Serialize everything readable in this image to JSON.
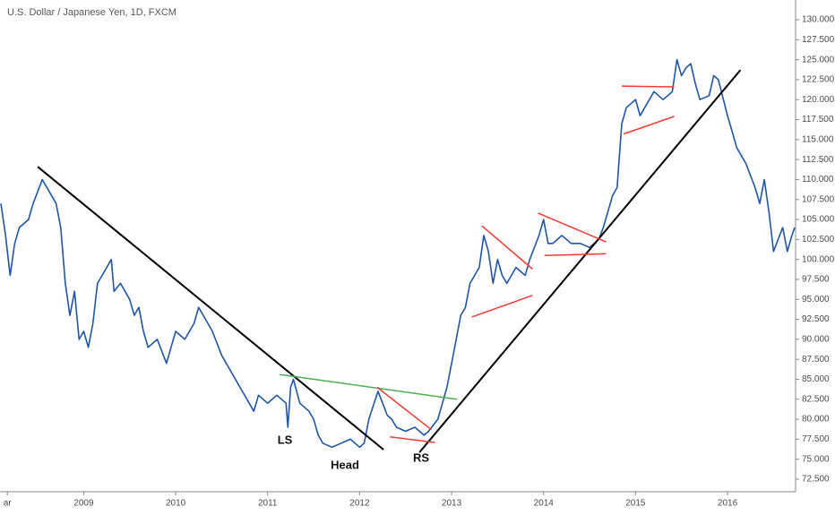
{
  "chart_data": {
    "type": "line",
    "title": "U.S. Dollar / Japanese Yen, 1D, FXCM",
    "x": [
      2008.1,
      2008.15,
      2008.2,
      2008.25,
      2008.3,
      2008.4,
      2008.45,
      2008.55,
      2008.65,
      2008.7,
      2008.75,
      2008.8,
      2008.85,
      2008.9,
      2008.95,
      2009.0,
      2009.05,
      2009.1,
      2009.15,
      2009.2,
      2009.3,
      2009.33,
      2009.4,
      2009.5,
      2009.55,
      2009.6,
      2009.65,
      2009.7,
      2009.8,
      2009.9,
      2009.95,
      2010.0,
      2010.1,
      2010.2,
      2010.25,
      2010.3,
      2010.35,
      2010.4,
      2010.5,
      2010.6,
      2010.7,
      2010.8,
      2010.85,
      2010.9,
      2011.0,
      2011.1,
      2011.2,
      2011.22,
      2011.25,
      2011.28,
      2011.35,
      2011.45,
      2011.5,
      2011.55,
      2011.6,
      2011.7,
      2011.8,
      2011.9,
      2012.0,
      2012.05,
      2012.1,
      2012.2,
      2012.25,
      2012.3,
      2012.35,
      2012.4,
      2012.5,
      2012.6,
      2012.7,
      2012.75,
      2012.85,
      2012.9,
      2012.95,
      2013.0,
      2013.05,
      2013.1,
      2013.15,
      2013.2,
      2013.3,
      2013.35,
      2013.4,
      2013.45,
      2013.5,
      2013.55,
      2013.6,
      2013.7,
      2013.8,
      2013.85,
      2013.95,
      2014.0,
      2014.05,
      2014.1,
      2014.2,
      2014.3,
      2014.4,
      2014.5,
      2014.55,
      2014.6,
      2014.65,
      2014.7,
      2014.75,
      2014.8,
      2014.85,
      2014.9,
      2015.0,
      2015.05,
      2015.1,
      2015.2,
      2015.3,
      2015.4,
      2015.45,
      2015.5,
      2015.55,
      2015.6,
      2015.65,
      2015.7,
      2015.8,
      2015.85,
      2015.9,
      2016.0,
      2016.05,
      2016.1,
      2016.15,
      2016.2,
      2016.3,
      2016.35,
      2016.4,
      2016.45,
      2016.5,
      2016.55,
      2016.6,
      2016.65,
      2016.7,
      2016.73
    ],
    "series": [
      {
        "color": "#1f55a6",
        "values": [
          107,
          103,
          98,
          102,
          104,
          105,
          107,
          110,
          108,
          107,
          104,
          97,
          93,
          96,
          90,
          91,
          89,
          92,
          97,
          98,
          100,
          96,
          97,
          95,
          93,
          94,
          91,
          89,
          90,
          87,
          89,
          91,
          90,
          92,
          94,
          93,
          92,
          91,
          88,
          86,
          84,
          82,
          81,
          83,
          82,
          83,
          82,
          79,
          84,
          85,
          82,
          81,
          80,
          78,
          77,
          76.5,
          77,
          77.5,
          76.5,
          77,
          80,
          83.5,
          82,
          80.5,
          80,
          79,
          78.5,
          79,
          78,
          78.5,
          80,
          82,
          84,
          87,
          90,
          93,
          94,
          97,
          99,
          103,
          101,
          97,
          100,
          98,
          97,
          99,
          98,
          100,
          103,
          105,
          102,
          102,
          103,
          102,
          102,
          101.5,
          102,
          102.5,
          104,
          106,
          108,
          109,
          117,
          119,
          120,
          118,
          119,
          121,
          120,
          121,
          125,
          123,
          124,
          124.5,
          122,
          120,
          120.5,
          123,
          122.5,
          118,
          116,
          114,
          113,
          112,
          109,
          107,
          110,
          106,
          101,
          102.5,
          104,
          101,
          103,
          104
        ]
      }
    ],
    "trendlines": [
      {
        "color": "#000000",
        "x": [
          2008.5,
          2012.26
        ],
        "y": [
          111.6,
          76.2
        ]
      },
      {
        "color": "#000000",
        "x": [
          2012.65,
          2016.14
        ],
        "y": [
          75.85,
          123.7
        ]
      },
      {
        "color": "#4caf50",
        "x": [
          2011.13,
          2013.06
        ],
        "y": [
          85.6,
          82.5
        ]
      },
      {
        "color": "#f03c32",
        "x": [
          2012.19,
          2012.78
        ],
        "y": [
          84.0,
          78.7
        ]
      },
      {
        "color": "#f03c32",
        "x": [
          2012.33,
          2012.82
        ],
        "y": [
          77.8,
          77.1
        ]
      },
      {
        "color": "#f03c32",
        "x": [
          2013.33,
          2013.88
        ],
        "y": [
          104.2,
          98.8
        ]
      },
      {
        "color": "#f03c32",
        "x": [
          2013.22,
          2013.88
        ],
        "y": [
          92.8,
          95.5
        ]
      },
      {
        "color": "#f03c32",
        "x": [
          2013.94,
          2014.68
        ],
        "y": [
          105.8,
          102.2
        ]
      },
      {
        "color": "#f03c32",
        "x": [
          2014.01,
          2014.68
        ],
        "y": [
          100.5,
          100.7
        ]
      },
      {
        "color": "#f03c32",
        "x": [
          2014.85,
          2015.42
        ],
        "y": [
          121.7,
          121.6
        ]
      },
      {
        "color": "#f03c32",
        "x": [
          2014.87,
          2015.42
        ],
        "y": [
          115.7,
          117.9
        ]
      }
    ],
    "annotations": [
      "LS",
      "Head",
      "RS"
    ],
    "xlim": [
      2008.09,
      2016.74
    ],
    "xticks": [
      {
        "value": 2008.17,
        "label": "ar"
      },
      2009,
      2010,
      2011,
      2012,
      2013,
      2014,
      2015,
      2016
    ],
    "ylim": [
      70.93,
      132.47
    ],
    "yticks": [
      {
        "value": 72.5,
        "label": "72.500"
      },
      {
        "value": 75,
        "label": "75.000"
      },
      {
        "value": 77.5,
        "label": "77.500"
      },
      {
        "value": 80,
        "label": "80.000"
      },
      {
        "value": 82.5,
        "label": "82.500"
      },
      {
        "value": 85,
        "label": "85.000"
      },
      {
        "value": 87.5,
        "label": "87.500"
      },
      {
        "value": 90,
        "label": "90.000"
      },
      {
        "value": 92.5,
        "label": "92.500"
      },
      {
        "value": 95,
        "label": "95.000"
      },
      {
        "value": 97.5,
        "label": "97.500"
      },
      {
        "value": 100,
        "label": "100.000"
      },
      {
        "value": 102.5,
        "label": "102.500"
      },
      {
        "value": 105,
        "label": "105.000"
      },
      {
        "value": 107.5,
        "label": "107.500"
      },
      {
        "value": 110,
        "label": "110.000"
      },
      {
        "value": 112.5,
        "label": "112.500"
      },
      {
        "value": 115,
        "label": "115.000"
      },
      {
        "value": 117.5,
        "label": "117.500"
      },
      {
        "value": 120,
        "label": "120.000"
      },
      {
        "value": 122.5,
        "label": "122.500"
      },
      {
        "value": 125,
        "label": "125.000"
      },
      {
        "value": 127.5,
        "label": "127.500"
      },
      {
        "value": 130,
        "label": "130.000"
      }
    ]
  }
}
